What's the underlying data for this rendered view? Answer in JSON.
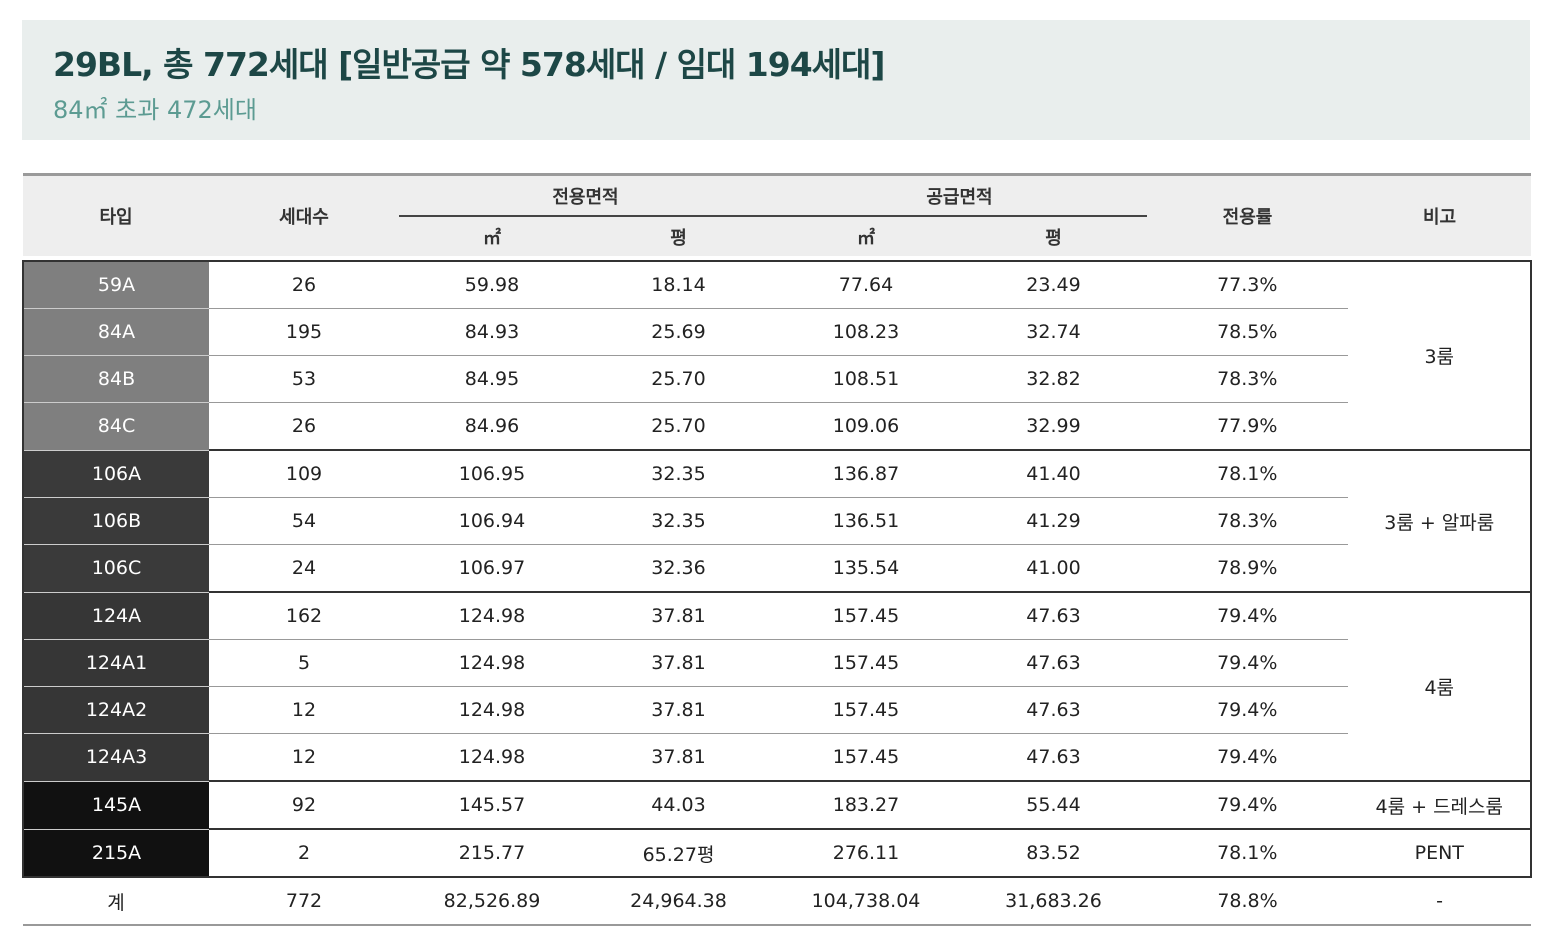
{
  "header": {
    "title": "29BL, 총 772세대 [일반공급 약 578세대 / 임대 194세대]",
    "subtitle": "84㎡ 초과 472세대"
  },
  "table": {
    "columns": {
      "type": "타입",
      "units": "세대수",
      "exclusive": "전용면적",
      "supply": "공급면적",
      "m2": "㎡",
      "py": "평",
      "ratio": "전용률",
      "remark": "비고"
    },
    "rows": [
      [
        "59A",
        "26",
        "59.98",
        "18.14",
        "77.64",
        "23.49",
        "77.3%",
        "3룸"
      ],
      [
        "84A",
        "195",
        "84.93",
        "25.69",
        "108.23",
        "32.74",
        "78.5%",
        null
      ],
      [
        "84B",
        "53",
        "84.95",
        "25.70",
        "108.51",
        "32.82",
        "78.3%",
        null
      ],
      [
        "84C",
        "26",
        "84.96",
        "25.70",
        "109.06",
        "32.99",
        "77.9%",
        null
      ],
      [
        "106A",
        "109",
        "106.95",
        "32.35",
        "136.87",
        "41.40",
        "78.1%",
        "3룸 + 알파룸"
      ],
      [
        "106B",
        "54",
        "106.94",
        "32.35",
        "136.51",
        "41.29",
        "78.3%",
        null
      ],
      [
        "106C",
        "24",
        "106.97",
        "32.36",
        "135.54",
        "41.00",
        "78.9%",
        null
      ],
      [
        "124A",
        "162",
        "124.98",
        "37.81",
        "157.45",
        "47.63",
        "79.4%",
        "4룸"
      ],
      [
        "124A1",
        "5",
        "124.98",
        "37.81",
        "157.45",
        "47.63",
        "79.4%",
        null
      ],
      [
        "124A2",
        "12",
        "124.98",
        "37.81",
        "157.45",
        "47.63",
        "79.4%",
        null
      ],
      [
        "124A3",
        "12",
        "124.98",
        "37.81",
        "157.45",
        "47.63",
        "79.4%",
        null
      ],
      [
        "145A",
        "92",
        "145.57",
        "44.03",
        "183.27",
        "55.44",
        "79.4%",
        "4룸 + 드레스룸"
      ],
      [
        "215A",
        "2",
        "215.77",
        "65.27평",
        "276.11",
        "83.52",
        "78.1%",
        "PENT"
      ]
    ],
    "total": [
      "계",
      "772",
      "82,526.89",
      "24,964.38",
      "104,738.04",
      "31,683.26",
      "78.8%",
      "-"
    ]
  }
}
